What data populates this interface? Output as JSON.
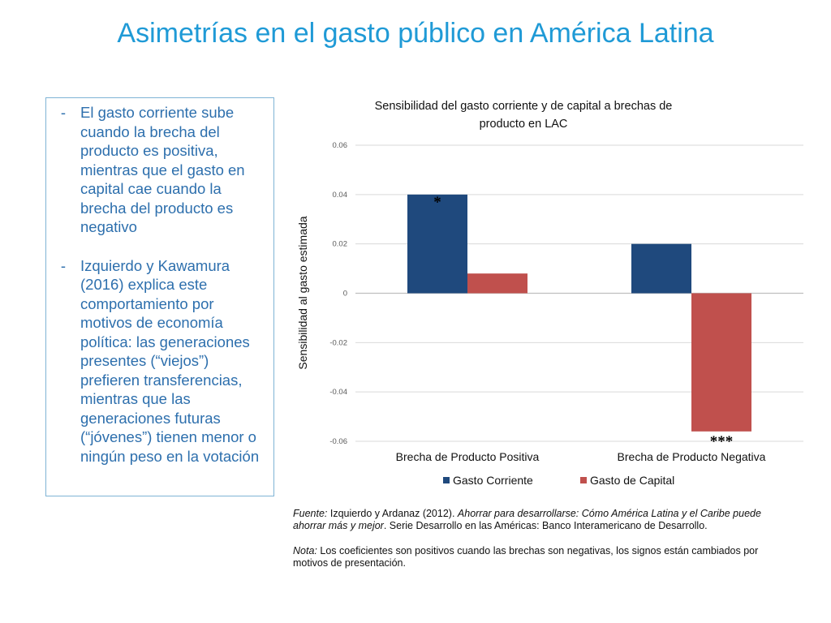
{
  "title": "Asimetrías en el gasto público en América Latina",
  "bullets": [
    {
      "dash": "-",
      "text": "El gasto corriente sube cuando la brecha del producto es positiva, mientras que el gasto en capital cae cuando la brecha del producto es negativo"
    },
    {
      "dash": "-",
      "text": "Izquierdo y Kawamura (2016) explica este comportamiento por motivos de economía política: las generaciones presentes (“viejos”) prefieren  transferencias, mientras que las generaciones futuras (“jóvenes”) tienen menor o ningún peso en la votación"
    }
  ],
  "chart_data": {
    "type": "bar",
    "title_line1": "Sensibilidad del gasto corriente y de capital a brechas de",
    "title_line2": "producto en LAC",
    "ylabel": "Sensibilidad  al gasto estimada",
    "ylim": [
      -0.06,
      0.06
    ],
    "yticks": [
      "0.06",
      "0.04",
      "0.02",
      "0",
      "-0.02",
      "-0.04",
      "-0.06"
    ],
    "ytick_values": [
      0.06,
      0.04,
      0.02,
      0,
      -0.02,
      -0.04,
      -0.06
    ],
    "categories": [
      "Brecha de Producto Positiva",
      "Brecha de Producto Negativa"
    ],
    "series": [
      {
        "name": "Gasto Corriente",
        "values": [
          0.04,
          0.02
        ],
        "color": "#1f497d",
        "significance": [
          "*",
          ""
        ]
      },
      {
        "name": "Gasto de Capital",
        "values": [
          0.008,
          -0.056
        ],
        "color": "#c0504d",
        "significance": [
          "",
          "***"
        ]
      }
    ],
    "grid": true,
    "legend": "bottom"
  },
  "notes": {
    "source_label": "Fuente:",
    "source_plain": " Izquierdo y Ardanaz (2012). ",
    "source_italic": "Ahorrar para desarrollarse: Cómo América Latina y el Caribe puede ahorrar más y mejor",
    "source_rest": ". Serie Desarrollo en las Américas: Banco Interamericano de Desarrollo.",
    "note_label": "Nota:",
    "note_text": " Los coeficientes son positivos cuando las brechas son negativas, los signos están cambiados por motivos de presentación."
  }
}
